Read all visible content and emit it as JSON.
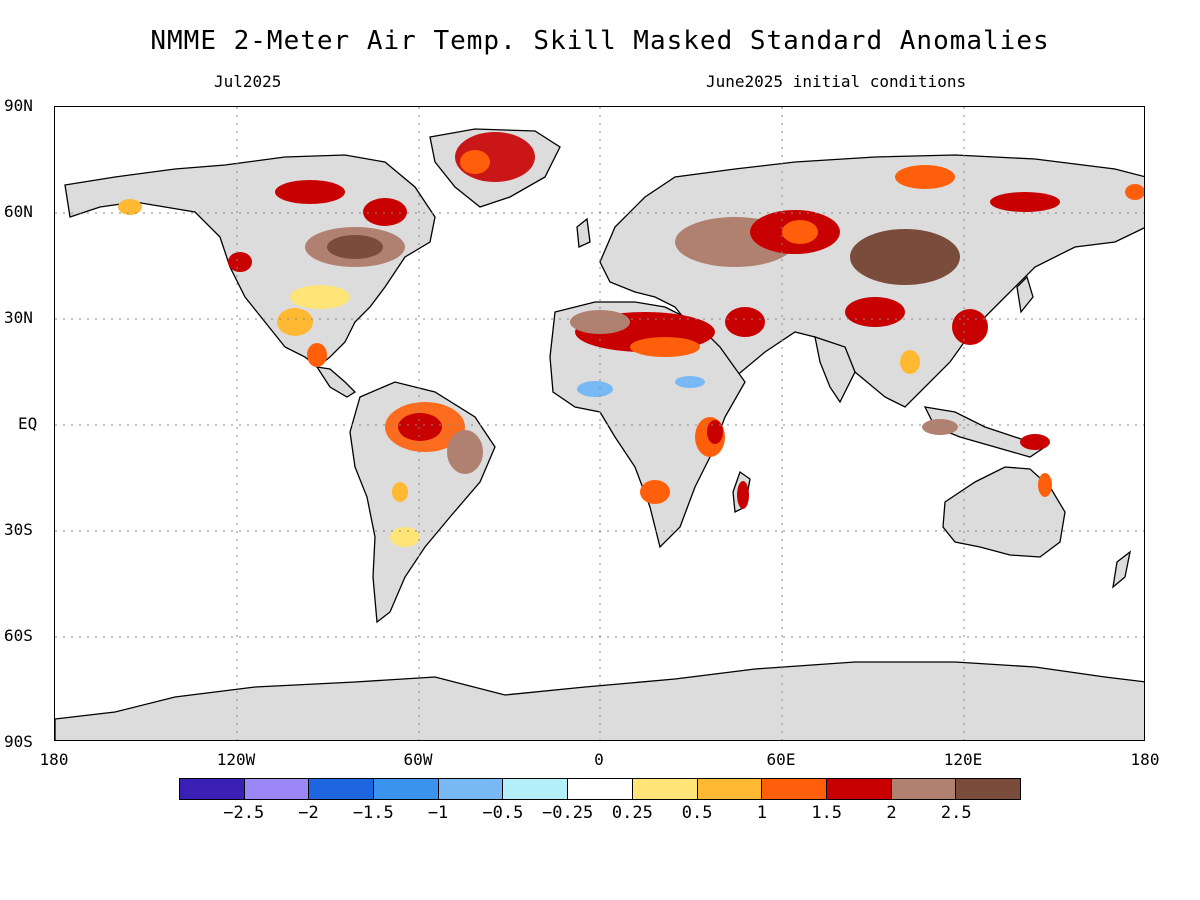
{
  "title": "NMME 2-Meter Air Temp. Skill Masked Standard Anomalies",
  "valid_month": "Jul2025",
  "initial_conditions": "June2025 initial conditions",
  "y_axis_labels": [
    "90N",
    "60N",
    "30N",
    "EQ",
    "30S",
    "60S",
    "90S"
  ],
  "x_axis_labels": [
    "180",
    "120W",
    "60W",
    "0",
    "60E",
    "120E",
    "180"
  ],
  "colorbar": {
    "colors": [
      "#3a1fb5",
      "#9b87f5",
      "#1e66e0",
      "#3a94ee",
      "#78b8f5",
      "#b4f0fa",
      "#ffffff",
      "#ffe478",
      "#ffb932",
      "#ff5f0a",
      "#c80000",
      "#b08070",
      "#7a4c3c"
    ],
    "labels": [
      "−2.5",
      "−2",
      "−1.5",
      "−1",
      "−0.5",
      "−0.25",
      "0.25",
      "0.5",
      "1",
      "1.5",
      "2",
      "2.5"
    ]
  },
  "land_gray": "#dcdcdc"
}
